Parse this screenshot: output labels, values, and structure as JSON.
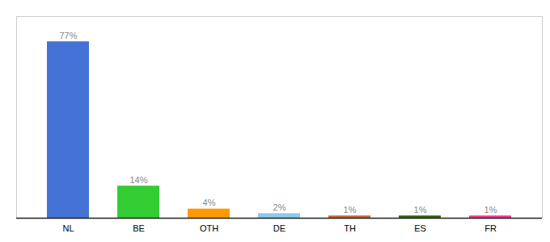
{
  "chart_data": {
    "type": "bar",
    "categories": [
      "NL",
      "BE",
      "OTH",
      "DE",
      "TH",
      "ES",
      "FR"
    ],
    "values": [
      77,
      14,
      4,
      2,
      1,
      1,
      1
    ],
    "value_labels": [
      "77%",
      "14%",
      "4%",
      "2%",
      "1%",
      "1%",
      "1%"
    ],
    "data_labels": true,
    "colors": [
      "#4472d6",
      "#33cc33",
      "#ff9900",
      "#88ccee",
      "#cc6633",
      "#336600",
      "#ff3399"
    ],
    "ylim": [
      0,
      88
    ],
    "tick_labels": "x"
  }
}
